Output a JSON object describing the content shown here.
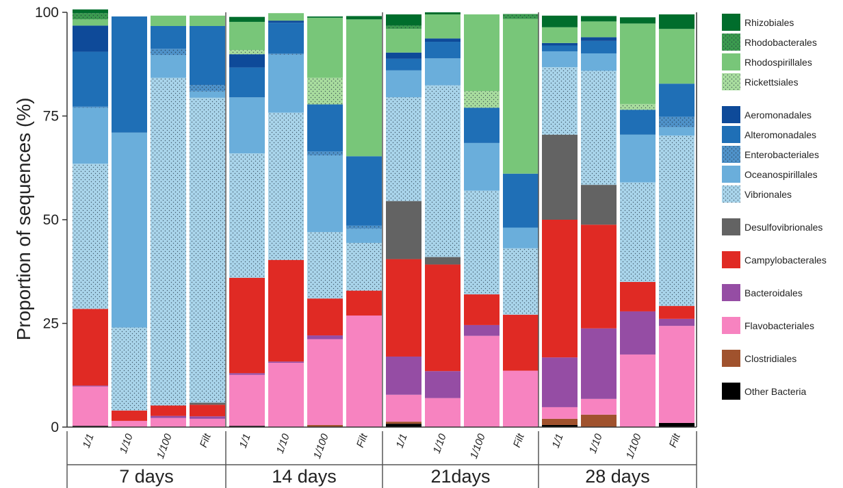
{
  "chart_data": {
    "type": "bar",
    "stacked": true,
    "ylabel": "Proportion of sequences (%)",
    "ylim": [
      0,
      100
    ],
    "yticks": [
      "0",
      "25",
      "50",
      "75",
      "100"
    ],
    "categories": [
      "1/1",
      "1/10",
      "1/100",
      "Filt",
      "1/1",
      "1/10",
      "1/100",
      "Filt",
      "1/1",
      "1/10",
      "1/100",
      "Filt",
      "1/1",
      "1/10",
      "1/100",
      "Filt"
    ],
    "groups": [
      {
        "label": "7 days",
        "count": 4
      },
      {
        "label": "14 days",
        "count": 4
      },
      {
        "label": "21days",
        "count": 4
      },
      {
        "label": "28 days",
        "count": 4
      }
    ],
    "legend_position": "right",
    "series": [
      {
        "name": "Other Bacteria",
        "color": "#000000",
        "pattern": "solid",
        "values": [
          0.3,
          0,
          0,
          0,
          0.3,
          0,
          0,
          0,
          0.8,
          0,
          0,
          0,
          0.5,
          0,
          0,
          1.0
        ]
      },
      {
        "name": "Clostridiales",
        "color": "#a0522d",
        "pattern": "solid",
        "values": [
          0,
          0,
          0,
          0,
          0,
          0,
          0.5,
          0,
          0.5,
          0,
          0,
          0,
          1.5,
          3.0,
          0,
          0
        ]
      },
      {
        "name": "Flavobacteriales",
        "color": "#f783c0",
        "pattern": "solid",
        "values": [
          9.5,
          1.5,
          2.2,
          2.0,
          12.3,
          15.5,
          20.7,
          26.9,
          6.5,
          7.0,
          22.0,
          13.6,
          2.8,
          3.8,
          17.5,
          23.4
        ]
      },
      {
        "name": "Bacteroidales",
        "color": "#954da4",
        "pattern": "solid",
        "values": [
          0.2,
          0,
          0.5,
          0.6,
          0.4,
          0.3,
          0.9,
          0,
          9.2,
          6.5,
          2.6,
          0,
          12.0,
          17.0,
          10.4,
          1.7
        ]
      },
      {
        "name": "Campylobacterales",
        "color": "#e02a24",
        "pattern": "solid",
        "values": [
          18.5,
          2.5,
          2.5,
          2.8,
          23.0,
          24.5,
          8.9,
          6.0,
          23.5,
          25.7,
          7.4,
          13.5,
          33.2,
          25.0,
          7.1,
          3.1
        ]
      },
      {
        "name": "Desulfovibrionales",
        "color": "#636363",
        "pattern": "solid",
        "values": [
          0,
          0,
          0,
          0.5,
          0,
          0,
          0,
          0,
          14.0,
          1.8,
          0,
          0,
          20.5,
          9.6,
          0,
          0
        ]
      },
      {
        "name": "Vibrionales",
        "color": "#a9d4ea",
        "pattern": "dots",
        "values": [
          35.0,
          20.0,
          79.0,
          73.5,
          30.0,
          35.5,
          16.0,
          11.5,
          25.0,
          41.4,
          25.0,
          16.0,
          16.3,
          27.5,
          24.0,
          41.1
        ]
      },
      {
        "name": "Oceanospirillales",
        "color": "#6aaedb",
        "pattern": "solid",
        "values": [
          13.5,
          47.0,
          5.5,
          1.5,
          13.5,
          14.0,
          18.5,
          3.4,
          6.5,
          6.5,
          11.5,
          5.0,
          3.8,
          4.2,
          11.5,
          2.0
        ]
      },
      {
        "name": "Enterobacteriales",
        "color": "#4f92c9",
        "pattern": "dots",
        "values": [
          0.3,
          0,
          1.5,
          1.6,
          0,
          0.3,
          1.0,
          0.8,
          0,
          0,
          0,
          0,
          0,
          0,
          0,
          2.5
        ]
      },
      {
        "name": "Alteromonadales",
        "color": "#1f6fb6",
        "pattern": "solid",
        "values": [
          13.2,
          28.0,
          5.5,
          14.2,
          7.2,
          7.4,
          11.3,
          16.7,
          2.8,
          4.0,
          8.5,
          13.0,
          1.4,
          3.0,
          6.0,
          8.0
        ]
      },
      {
        "name": "Aeromonadales",
        "color": "#0e4a99",
        "pattern": "solid",
        "values": [
          6.3,
          0,
          0,
          0,
          3.2,
          0.5,
          0,
          0,
          1.5,
          0.8,
          0,
          0,
          0.6,
          0.9,
          0,
          0
        ]
      },
      {
        "name": "Rickettsiales",
        "color": "#a8dc9e",
        "pattern": "dots",
        "values": [
          0,
          0,
          0,
          0,
          1.0,
          0,
          6.4,
          0,
          0,
          0,
          4.0,
          0,
          0,
          0,
          1.4,
          0
        ]
      },
      {
        "name": "Rhodospirillales",
        "color": "#78c679",
        "pattern": "solid",
        "values": [
          1.5,
          0,
          2.5,
          2.5,
          6.8,
          1.8,
          14.5,
          33.0,
          5.7,
          5.8,
          18.5,
          37.3,
          3.8,
          3.8,
          19.4,
          13.2
        ]
      },
      {
        "name": "Rhodobacterales",
        "color": "#3b9a4f",
        "pattern": "dots",
        "values": [
          1.5,
          0,
          0,
          0,
          0,
          0,
          0,
          0,
          0.8,
          0,
          0,
          1.2,
          0,
          0,
          0,
          0
        ]
      },
      {
        "name": "Rhizobiales",
        "color": "#006d2c",
        "pattern": "solid",
        "values": [
          0.9,
          0,
          0,
          0,
          1.2,
          0,
          0.3,
          0.8,
          2.7,
          0.5,
          0,
          0,
          2.8,
          1.3,
          1.5,
          3.5
        ]
      }
    ],
    "legend_groups": [
      [
        "Rhizobiales",
        "Rhodobacterales",
        "Rhodospirillales",
        "Rickettsiales"
      ],
      [
        "Aeromonadales",
        "Alteromonadales",
        "Enterobacteriales",
        "Oceanospirillales",
        "Vibrionales"
      ],
      [
        "Desulfovibrionales"
      ],
      [
        "Campylobacterales"
      ],
      [
        "Bacteroidales"
      ],
      [
        "Flavobacteriales"
      ],
      [
        "Clostridiales"
      ],
      [
        "Other Bacteria"
      ]
    ]
  }
}
